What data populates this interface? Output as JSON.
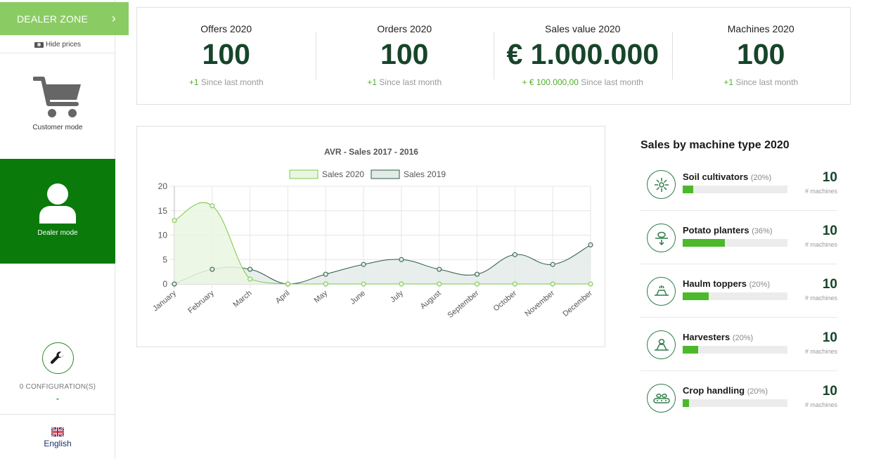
{
  "sidebar": {
    "dealer_zone_label": "DEALER ZONE",
    "hide_prices_label": "Hide prices",
    "customer_mode_label": "Customer mode",
    "dealer_mode_label": "Dealer mode",
    "configurations_label": "0 CONFIGURATION(S)",
    "configurations_value": "-",
    "language_label": "English"
  },
  "stats": [
    {
      "title": "Offers 2020",
      "value": "100",
      "delta": "+1",
      "since": "Since last month"
    },
    {
      "title": "Orders 2020",
      "value": "100",
      "delta": "+1",
      "since": "Since last month"
    },
    {
      "title": "Sales value 2020",
      "value": "€ 1.000.000",
      "delta": "+ € 100.000,00",
      "since": "Since last month"
    },
    {
      "title": "Machines 2020",
      "value": "100",
      "delta": "+1",
      "since": "Since last month"
    }
  ],
  "chart_data": {
    "type": "area",
    "title": "AVR - Sales 2017 - 2016",
    "categories": [
      "January",
      "February",
      "March",
      "April",
      "May",
      "June",
      "July",
      "August",
      "September",
      "October",
      "November",
      "December"
    ],
    "series": [
      {
        "name": "Sales 2020",
        "values": [
          13,
          16,
          1,
          0,
          0,
          0,
          0,
          0,
          0,
          0,
          0,
          0
        ],
        "color": "#7cc84a",
        "fill": "#eaf6e2"
      },
      {
        "name": "Sales 2019",
        "values": [
          0,
          3,
          3,
          0,
          2,
          4,
          5,
          3,
          2,
          6,
          4,
          8
        ],
        "color": "#2d5a45",
        "fill": "#e3ebe7"
      }
    ],
    "ylim": [
      0,
      20
    ],
    "yticks": [
      0,
      5,
      10,
      15,
      20
    ],
    "grid": true,
    "legend": "top"
  },
  "machines": {
    "heading": "Sales by machine type 2020",
    "unit_label": "# machines",
    "items": [
      {
        "name": "Soil cultivators",
        "pct": "(20%)",
        "count": "10",
        "bar": 0.1,
        "icon": "soil-cultivator-icon"
      },
      {
        "name": "Potato planters",
        "pct": "(36%)",
        "count": "10",
        "bar": 0.4,
        "icon": "potato-planter-icon"
      },
      {
        "name": "Haulm toppers",
        "pct": "(20%)",
        "count": "10",
        "bar": 0.25,
        "icon": "haulm-topper-icon"
      },
      {
        "name": "Harvesters",
        "pct": "(20%)",
        "count": "10",
        "bar": 0.15,
        "icon": "harvester-icon"
      },
      {
        "name": "Crop handling",
        "pct": "(20%)",
        "count": "10",
        "bar": 0.06,
        "icon": "crop-handling-icon"
      }
    ]
  },
  "colors": {
    "accent_light": "#8acc63",
    "accent_dark": "#0a7a0a",
    "value_text": "#17452a",
    "bar_fill": "#4cb92a"
  }
}
